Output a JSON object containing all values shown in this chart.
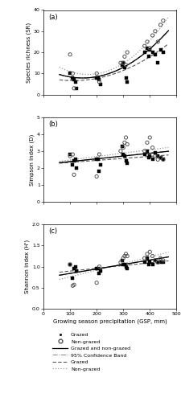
{
  "title_a": "(a)",
  "title_b": "(b)",
  "title_c": "(c)",
  "ylabel_a": "Species richness (SR)",
  "ylabel_b": "Simpson index (D)",
  "ylabel_c": "Shannon index (H')",
  "xlabel": "Growing season precipitation (GSP, mm)",
  "xlim": [
    0,
    500
  ],
  "ylim_a": [
    0,
    40
  ],
  "ylim_b": [
    0,
    5
  ],
  "ylim_c": [
    0.0,
    2.0
  ],
  "yticks_a": [
    0,
    10,
    20,
    30,
    40
  ],
  "yticks_b": [
    0,
    1,
    2,
    3,
    4,
    5
  ],
  "yticks_c": [
    0.0,
    0.5,
    1.0,
    1.5,
    2.0
  ],
  "xticks": [
    0,
    100,
    200,
    300,
    400,
    500
  ],
  "grazed_x_a": [
    100,
    110,
    115,
    120,
    125,
    200,
    205,
    210,
    215,
    295,
    300,
    305,
    310,
    315,
    380,
    390,
    395,
    400,
    410,
    420,
    430,
    440,
    450
  ],
  "grazed_y_a": [
    10,
    8,
    7,
    6,
    3,
    8,
    8,
    7,
    5,
    14,
    15,
    13,
    8,
    6,
    20,
    22,
    18,
    21,
    20,
    19,
    15,
    21,
    20
  ],
  "nongrazed_x_a": [
    100,
    110,
    115,
    200,
    210,
    290,
    300,
    305,
    310,
    315,
    380,
    390,
    400,
    410,
    420,
    430,
    440,
    450
  ],
  "nongrazed_y_a": [
    19,
    10,
    3,
    10,
    6,
    15,
    15,
    18,
    14,
    20,
    23,
    25,
    22,
    28,
    30,
    25,
    33,
    35
  ],
  "grazed_x_b": [
    100,
    110,
    115,
    120,
    125,
    200,
    205,
    210,
    215,
    295,
    300,
    305,
    310,
    315,
    380,
    390,
    395,
    400,
    410,
    420,
    430,
    440,
    450
  ],
  "grazed_y_b": [
    2.8,
    2.2,
    2.4,
    2.5,
    2.0,
    2.5,
    2.5,
    1.8,
    2.2,
    3.3,
    2.8,
    2.7,
    2.4,
    2.3,
    2.8,
    3.0,
    2.6,
    2.7,
    2.5,
    2.9,
    2.7,
    2.6,
    2.5
  ],
  "nongrazed_x_b": [
    100,
    110,
    115,
    200,
    210,
    290,
    300,
    305,
    310,
    315,
    380,
    390,
    400,
    410,
    420,
    430,
    440,
    450
  ],
  "nongrazed_y_b": [
    2.7,
    2.8,
    1.6,
    1.5,
    2.8,
    3.0,
    3.2,
    3.5,
    3.8,
    3.4,
    3.0,
    3.5,
    3.8,
    3.2,
    2.7,
    2.5,
    2.6,
    2.5
  ],
  "grazed_x_c": [
    100,
    110,
    115,
    120,
    125,
    200,
    205,
    210,
    215,
    295,
    300,
    305,
    310,
    315,
    380,
    390,
    395,
    400,
    410,
    420,
    430,
    440,
    450
  ],
  "grazed_y_c": [
    1.05,
    0.72,
    0.95,
    1.0,
    0.9,
    0.95,
    0.95,
    0.85,
    0.9,
    1.15,
    1.05,
    1.05,
    1.0,
    0.95,
    1.1,
    1.2,
    1.05,
    1.1,
    1.05,
    1.15,
    1.1,
    1.1,
    1.1
  ],
  "nongrazed_x_c": [
    100,
    110,
    115,
    200,
    210,
    290,
    300,
    305,
    310,
    315,
    380,
    390,
    400,
    410,
    420,
    430,
    440,
    450
  ],
  "nongrazed_y_c": [
    1.05,
    0.55,
    0.57,
    0.62,
    1.0,
    1.1,
    1.2,
    1.25,
    1.3,
    1.25,
    1.2,
    1.3,
    1.35,
    1.25,
    1.15,
    1.1,
    1.2,
    1.15
  ],
  "legend_labels": [
    "Grazed",
    "Non-grazed",
    "Grazed and non-grazed",
    "95% Confidence Band",
    "Grazed",
    "Non-grazed"
  ]
}
